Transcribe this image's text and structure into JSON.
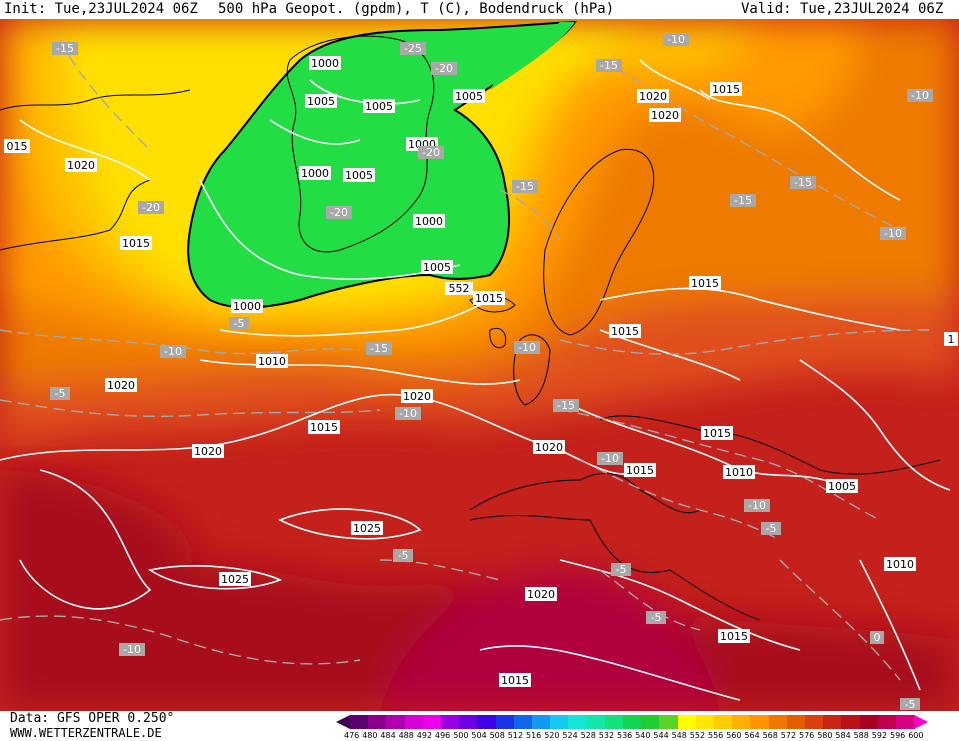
{
  "header": {
    "init": "Init: Tue,23JUL2024 06Z",
    "title": "500 hPa Geopot. (gpdm), T (C), Bodendruck (hPa)",
    "valid": "Valid: Tue,23JUL2024 06Z"
  },
  "footer": {
    "data_source": "Data: GFS OPER 0.250°",
    "website": "WWW.WETTERZENTRALE.DE"
  },
  "colorbar": {
    "labels": [
      "476",
      "480",
      "484",
      "488",
      "492",
      "496",
      "500",
      "504",
      "508",
      "512",
      "516",
      "520",
      "524",
      "528",
      "532",
      "536",
      "540",
      "544",
      "548",
      "552",
      "556",
      "560",
      "564",
      "568",
      "572",
      "576",
      "580",
      "584",
      "588",
      "592",
      "596",
      "600"
    ],
    "colors": [
      "#3d0050",
      "#5a0070",
      "#8a008a",
      "#b000b0",
      "#d800d8",
      "#ee00ee",
      "#9a00e6",
      "#6e00e6",
      "#4000e6",
      "#1c33e6",
      "#1266ee",
      "#1499f2",
      "#14c8f2",
      "#14e6d6",
      "#14e6aa",
      "#14e07c",
      "#14d452",
      "#20cc30",
      "#5ad228",
      "#ffff00",
      "#ffe600",
      "#ffcc00",
      "#ffb000",
      "#ff9400",
      "#f07800",
      "#e65c00",
      "#dc4010",
      "#cc2414",
      "#bb1018",
      "#a8001e",
      "#c0004c",
      "#d80080",
      "#ff00c8"
    ]
  },
  "map_colors": {
    "cold_low_fill": "#22dd44",
    "band_yellow": "#ffdd00",
    "band_orange": "#ee7a00",
    "band_red": "#d03414",
    "band_darkred": "#a80c1c",
    "band_crimson": "#b0003c",
    "isobar": "#ffffff",
    "isotherm": "#a8a8a8",
    "geopot_contour": "#000000"
  },
  "isobar_labels": [
    "1000",
    "1005",
    "1005",
    "1000",
    "1005",
    "1005",
    "1000",
    "1000",
    "1005",
    "1015",
    "1000",
    "1010",
    "1020",
    "1015",
    "1020",
    "1020",
    "1025",
    "1025",
    "1020",
    "1015",
    "1015",
    "1015",
    "1020",
    "1020",
    "1015",
    "1020",
    "1015",
    "1015",
    "1010",
    "1005",
    "1010",
    "1020",
    "1015",
    "1015",
    "015",
    "1"
  ],
  "isotherm_labels": [
    "-15",
    "-25",
    "-20",
    "-20",
    "-15",
    "-15",
    "-20",
    "-10",
    "-15",
    "-15",
    "-10",
    "-10",
    "-5",
    "-10",
    "-15",
    "-20",
    "-10",
    "-15",
    "-10",
    "-5",
    "-10",
    "-5",
    "-5",
    "-5",
    "-10",
    "-10",
    "-5",
    "0",
    "-5"
  ],
  "geopot_label": "552"
}
